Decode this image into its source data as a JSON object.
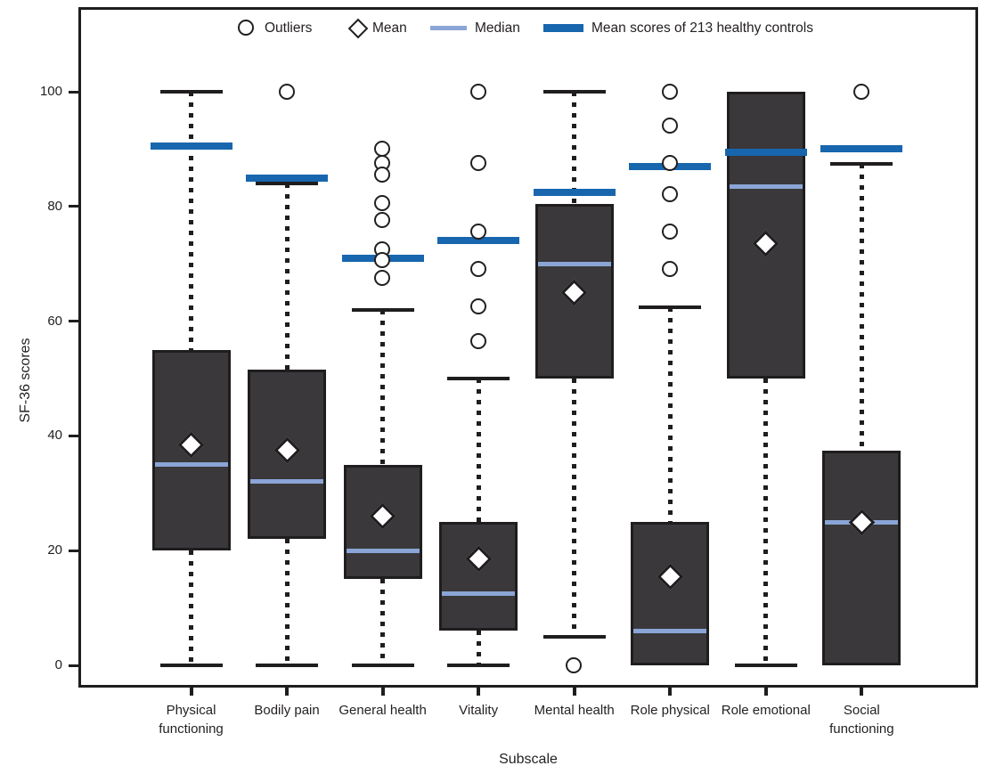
{
  "chart_data": {
    "type": "boxplot",
    "title": "",
    "xlabel": "Subscale",
    "ylabel": "SF-36 scores",
    "ylim": [
      0,
      100
    ],
    "yticks": [
      0,
      20,
      40,
      60,
      80,
      100
    ],
    "grid": false,
    "legend": {
      "position": "top-inside",
      "outliers": "Outliers",
      "mean": "Mean",
      "median": "Median",
      "controls": "Mean scores of 213 healthy controls"
    },
    "colors": {
      "healthy_controls_line": "#1766ae",
      "median_line": "#8aa5d6",
      "box_fill": "#3a383a",
      "box_border": "#1f1d1e",
      "marker_fill": "#ffffff"
    },
    "categories": [
      "Physical functioning",
      "Bodily pain",
      "General health",
      "Vitality",
      "Mental health",
      "Role physical",
      "Role emotional",
      "Social functioning"
    ],
    "series": [
      {
        "category": "Physical functioning",
        "whisker_low": 0,
        "q1": 20,
        "median": 35,
        "q3": 55,
        "whisker_high": 100,
        "mean": 38.5,
        "outliers": [],
        "healthy_controls_mean": 90.5
      },
      {
        "category": "Bodily pain",
        "whisker_low": 0,
        "q1": 22,
        "median": 32,
        "q3": 51.5,
        "whisker_high": 84,
        "mean": 37.5,
        "outliers": [
          100
        ],
        "healthy_controls_mean": 85
      },
      {
        "category": "General health",
        "whisker_low": 0,
        "q1": 15,
        "median": 20,
        "q3": 35,
        "whisker_high": 62,
        "mean": 26,
        "outliers": [
          90,
          87.5,
          85.5,
          80.5,
          77.5,
          72.5,
          70.5,
          67.5
        ],
        "healthy_controls_mean": 71
      },
      {
        "category": "Vitality",
        "whisker_low": 0,
        "q1": 6,
        "median": 12.5,
        "q3": 25,
        "whisker_high": 50,
        "mean": 18.5,
        "outliers": [
          100,
          87.5,
          75.5,
          69,
          62.5,
          56.5
        ],
        "healthy_controls_mean": 74
      },
      {
        "category": "Mental health",
        "whisker_low": 5,
        "q1": 50,
        "median": 70,
        "q3": 80.5,
        "whisker_high": 100,
        "mean": 65,
        "outliers": [
          0
        ],
        "healthy_controls_mean": 82.5
      },
      {
        "category": "Role physical",
        "whisker_low": 0,
        "q1": 0,
        "median": 6,
        "q3": 25,
        "whisker_high": 62.5,
        "mean": 15.5,
        "outliers": [
          100,
          94,
          87.5,
          82,
          75.5,
          69
        ],
        "healthy_controls_mean": 87
      },
      {
        "category": "Role emotional",
        "whisker_low": 0,
        "q1": 50,
        "median": 83.5,
        "q3": 100,
        "whisker_high": 100,
        "mean": 73.5,
        "outliers": [],
        "healthy_controls_mean": 89.5
      },
      {
        "category": "Social functioning",
        "whisker_low": 0,
        "q1": 0,
        "median": 25,
        "q3": 37.5,
        "whisker_high": 87.5,
        "mean": 25,
        "outliers": [
          100
        ],
        "healthy_controls_mean": 90
      }
    ]
  }
}
